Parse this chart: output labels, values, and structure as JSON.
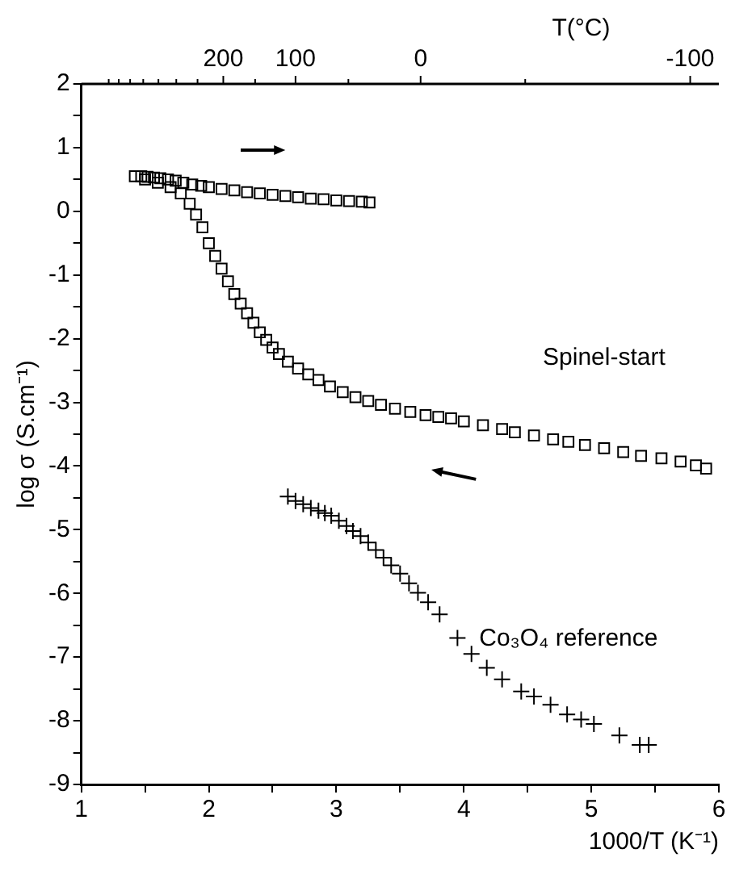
{
  "chart_data": {
    "type": "scatter",
    "xlabel": "1000/T (K⁻¹)",
    "ylabel": "log σ (S.cm⁻¹)",
    "xlim": [
      1,
      6
    ],
    "xticks": [
      1,
      {
        "value": 1.5,
        "label": null
      },
      2,
      {
        "value": 2.5,
        "label": null
      },
      3,
      {
        "value": 3.5,
        "label": null
      },
      4,
      {
        "value": 4.5,
        "label": null
      },
      5,
      {
        "value": 5.5,
        "label": null
      },
      6
    ],
    "ylim": [
      -9,
      2
    ],
    "yticks": [
      -9,
      {
        "value": -8.5,
        "label": null
      },
      -8,
      {
        "value": -7.5,
        "label": null
      },
      -7,
      {
        "value": -6.5,
        "label": null
      },
      -6,
      {
        "value": -5.5,
        "label": null
      },
      -5,
      {
        "value": -4.5,
        "label": null
      },
      -4,
      {
        "value": -3.5,
        "label": null
      },
      -3,
      {
        "value": -2.5,
        "label": null
      },
      -2,
      {
        "value": -1.5,
        "label": null
      },
      -1,
      {
        "value": -0.5,
        "label": null
      },
      0,
      {
        "value": 0.5,
        "label": null
      },
      1,
      {
        "value": 1.5,
        "label": null
      },
      2
    ],
    "grid": false,
    "legend": false,
    "annotations": [
      "Spinel-start",
      "Co₃O₄ reference",
      "T(°C)",
      "200",
      "100",
      "0",
      "-100"
    ],
    "series": [
      {
        "color": "#000000",
        "marker": "square",
        "x": [
          1.42,
          1.47,
          1.52,
          1.57,
          1.62,
          1.68,
          1.74,
          1.8,
          1.87,
          1.94,
          2.0,
          2.1,
          2.2,
          2.3,
          2.4,
          2.5,
          2.6,
          2.7,
          2.8,
          2.9,
          3.0,
          3.1,
          3.2,
          3.26,
          1.5,
          1.6,
          1.7,
          1.78,
          1.85,
          1.9,
          1.95,
          2.0,
          2.05,
          2.1,
          2.15,
          2.2,
          2.25,
          2.3,
          2.35,
          2.4,
          2.45,
          2.5,
          2.55,
          2.62,
          2.7,
          2.78,
          2.86,
          2.95,
          3.05,
          3.15,
          3.25,
          3.35,
          3.46,
          3.58,
          3.7,
          3.8,
          3.9,
          4.0,
          4.15,
          4.3,
          4.4,
          4.55,
          4.7,
          4.82,
          4.95,
          5.1,
          5.25,
          5.39,
          5.55,
          5.7,
          5.82,
          5.9
        ],
        "values": [
          0.55,
          0.55,
          0.54,
          0.53,
          0.52,
          0.5,
          0.48,
          0.45,
          0.42,
          0.4,
          0.38,
          0.35,
          0.33,
          0.3,
          0.28,
          0.26,
          0.24,
          0.22,
          0.2,
          0.19,
          0.17,
          0.16,
          0.15,
          0.14,
          0.5,
          0.45,
          0.38,
          0.28,
          0.12,
          -0.05,
          -0.25,
          -0.5,
          -0.7,
          -0.9,
          -1.1,
          -1.3,
          -1.45,
          -1.6,
          -1.75,
          -1.9,
          -2.02,
          -2.14,
          -2.24,
          -2.36,
          -2.47,
          -2.56,
          -2.65,
          -2.75,
          -2.84,
          -2.92,
          -2.98,
          -3.04,
          -3.1,
          -3.15,
          -3.2,
          -3.23,
          -3.25,
          -3.3,
          -3.36,
          -3.42,
          -3.47,
          -3.52,
          -3.58,
          -3.62,
          -3.67,
          -3.72,
          -3.78,
          -3.84,
          -3.88,
          -3.93,
          -3.99,
          -4.04
        ]
      },
      {
        "color": "#000000",
        "marker": "cross",
        "x": [
          2.62,
          2.68,
          2.74,
          2.8,
          2.86,
          2.91,
          2.96,
          3.02,
          3.08,
          3.13,
          3.19,
          3.25,
          3.31,
          3.37,
          3.43,
          3.5,
          3.57,
          3.64,
          3.72,
          3.81,
          3.95,
          4.06,
          4.18,
          4.3,
          4.45,
          4.55,
          4.68,
          4.81,
          4.92,
          5.02,
          5.22,
          5.38,
          5.45
        ],
        "values": [
          -4.48,
          -4.55,
          -4.6,
          -4.66,
          -4.7,
          -4.74,
          -4.78,
          -4.86,
          -4.94,
          -5.02,
          -5.1,
          -5.2,
          -5.32,
          -5.44,
          -5.56,
          -5.69,
          -5.84,
          -5.99,
          -6.14,
          -6.33,
          -6.7,
          -6.95,
          -7.17,
          -7.35,
          -7.54,
          -7.62,
          -7.75,
          -7.9,
          -7.98,
          -8.05,
          -8.23,
          -8.38,
          -8.38
        ]
      }
    ]
  }
}
